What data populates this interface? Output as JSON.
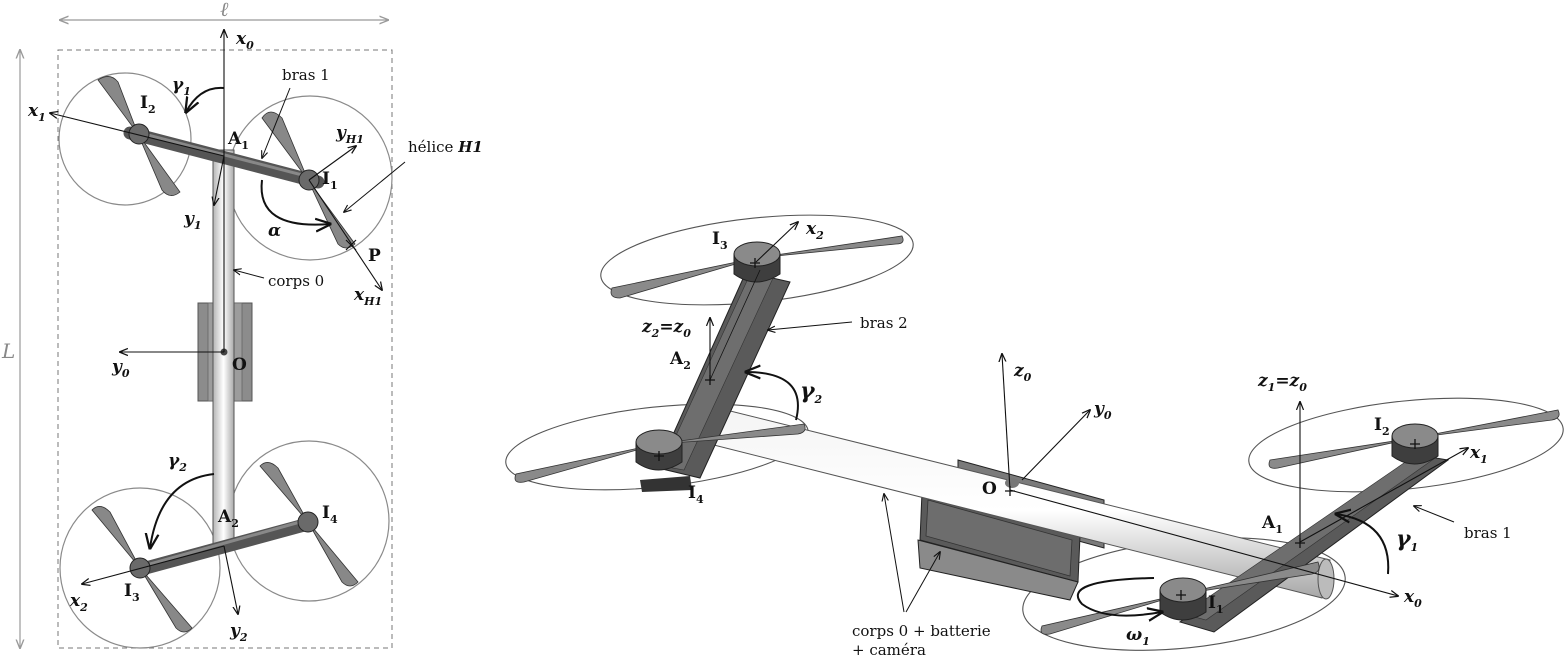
{
  "left_view": {
    "dim_width": "ℓ",
    "dim_length": "L",
    "axes": {
      "x0": "x",
      "x0_sub": "0",
      "y0": "y",
      "y0_sub": "0",
      "x1": "x",
      "x1_sub": "1",
      "y1": "y",
      "y1_sub": "1",
      "x2": "x",
      "x2_sub": "2",
      "y2": "y",
      "y2_sub": "2",
      "xH1": "x",
      "xH1_sub": "H1",
      "yH1": "y",
      "yH1_sub": "H1"
    },
    "angles": {
      "gamma1": "γ",
      "gamma1_sub": "1",
      "gamma2": "γ",
      "gamma2_sub": "2",
      "alpha": "α"
    },
    "points": {
      "I2": "I",
      "I2_sub": "2",
      "A1": "A",
      "A1_sub": "1",
      "I1": "I",
      "I1_sub": "1",
      "P": "P",
      "O": "O",
      "A2": "A",
      "A2_sub": "2",
      "I3": "I",
      "I3_sub": "3",
      "I4": "I",
      "I4_sub": "4"
    },
    "annotations": {
      "bras1": "bras 1",
      "helice_prefix": "hélice ",
      "helice_name": "H1",
      "corps0": "corps 0"
    }
  },
  "right_view": {
    "axes": {
      "x2": "x",
      "x2_sub": "2",
      "z2z0": "z",
      "z2z0_sub": "2",
      "z2z0_eq": "=z",
      "z2z0_eq_sub": "0",
      "z0": "z",
      "z0_sub": "0",
      "y0": "y",
      "y0_sub": "0",
      "z1z0": "z",
      "z1z0_sub": "1",
      "z1z0_eq": "=z",
      "z1z0_eq_sub": "0",
      "x1": "x",
      "x1_sub": "1",
      "x0": "x",
      "x0_sub": "0"
    },
    "angles": {
      "gamma2": "γ",
      "gamma2_sub": "2",
      "gamma1": "γ",
      "gamma1_sub": "1",
      "omega1": "ω",
      "omega1_sub": "1"
    },
    "points": {
      "I3": "I",
      "I3_sub": "3",
      "A2": "A",
      "A2_sub": "2",
      "I4": "I",
      "I4_sub": "4",
      "O": "O",
      "I2": "I",
      "I2_sub": "2",
      "A1": "A",
      "A1_sub": "1",
      "I1": "I",
      "I1_sub": "1"
    },
    "annotations": {
      "bras2": "bras 2",
      "bras1": "bras 1",
      "corps_line1": "corps 0 + batterie",
      "corps_line2": "+ caméra"
    }
  },
  "colors": {
    "stroke": "#111111",
    "arm": "#555555",
    "blade": "#888888",
    "motor": "#6a6a6a",
    "circle": "#8a8a8a",
    "body": "#e6e6e6"
  }
}
